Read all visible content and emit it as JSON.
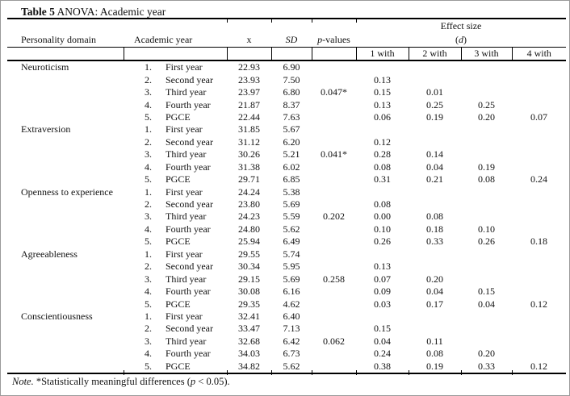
{
  "title": {
    "bold": "Table 5",
    "rest": " ANOVA: Academic year"
  },
  "header": {
    "personality": "Personality domain",
    "academic_year": "Academic year",
    "mean": "x",
    "sd": "SD",
    "p_italic": "p",
    "p_rest": "-values",
    "effect_size_line1": "Effect size",
    "effect_open": "(",
    "effect_d": "d",
    "effect_close": ")",
    "with_cols": [
      "1 with",
      "2 with",
      "3 with",
      "4 with"
    ]
  },
  "domains": [
    {
      "name": "Neuroticism",
      "rows": [
        {
          "num": "1.",
          "year": "First year",
          "x": "22.93",
          "sd": "6.90",
          "p": "",
          "e1": "",
          "e2": "",
          "e3": "",
          "e4": ""
        },
        {
          "num": "2.",
          "year": "Second year",
          "x": "23.93",
          "sd": "7.50",
          "p": "",
          "e1": "0.13",
          "e2": "",
          "e3": "",
          "e4": ""
        },
        {
          "num": "3.",
          "year": "Third year",
          "x": "23.97",
          "sd": "6.80",
          "p": "0.047*",
          "e1": "0.15",
          "e2": "0.01",
          "e3": "",
          "e4": ""
        },
        {
          "num": "4.",
          "year": "Fourth year",
          "x": "21.87",
          "sd": "8.37",
          "p": "",
          "e1": "0.13",
          "e2": "0.25",
          "e3": "0.25",
          "e4": ""
        },
        {
          "num": "5.",
          "year": "PGCE",
          "x": "22.44",
          "sd": "7.63",
          "p": "",
          "e1": "0.06",
          "e2": "0.19",
          "e3": "0.20",
          "e4": "0.07"
        }
      ]
    },
    {
      "name": "Extraversion",
      "rows": [
        {
          "num": "1.",
          "year": "First year",
          "x": "31.85",
          "sd": "5.67",
          "p": "",
          "e1": "",
          "e2": "",
          "e3": "",
          "e4": ""
        },
        {
          "num": "2.",
          "year": "Second year",
          "x": "31.12",
          "sd": "6.20",
          "p": "",
          "e1": "0.12",
          "e2": "",
          "e3": "",
          "e4": ""
        },
        {
          "num": "3.",
          "year": "Third year",
          "x": "30.26",
          "sd": "5.21",
          "p": "0.041*",
          "e1": "0.28",
          "e2": "0.14",
          "e3": "",
          "e4": ""
        },
        {
          "num": "4.",
          "year": "Fourth year",
          "x": "31.38",
          "sd": "6.02",
          "p": "",
          "e1": "0.08",
          "e2": "0.04",
          "e3": "0.19",
          "e4": ""
        },
        {
          "num": "5.",
          "year": "PGCE",
          "x": "29.71",
          "sd": "6.85",
          "p": "",
          "e1": "0.31",
          "e2": "0.21",
          "e3": "0.08",
          "e4": "0.24"
        }
      ]
    },
    {
      "name": "Openness to experience",
      "rows": [
        {
          "num": "1.",
          "year": "First year",
          "x": "24.24",
          "sd": "5.38",
          "p": "",
          "e1": "",
          "e2": "",
          "e3": "",
          "e4": ""
        },
        {
          "num": "2.",
          "year": "Second year",
          "x": "23.80",
          "sd": "5.69",
          "p": "",
          "e1": "0.08",
          "e2": "",
          "e3": "",
          "e4": ""
        },
        {
          "num": "3.",
          "year": "Third year",
          "x": "24.23",
          "sd": "5.59",
          "p": "0.202",
          "e1": "0.00",
          "e2": "0.08",
          "e3": "",
          "e4": ""
        },
        {
          "num": "4.",
          "year": "Fourth year",
          "x": "24.80",
          "sd": "5.62",
          "p": "",
          "e1": "0.10",
          "e2": "0.18",
          "e3": "0.10",
          "e4": ""
        },
        {
          "num": "5.",
          "year": "PGCE",
          "x": "25.94",
          "sd": "6.49",
          "p": "",
          "e1": "0.26",
          "e2": "0.33",
          "e3": "0.26",
          "e4": "0.18"
        }
      ]
    },
    {
      "name": "Agreeableness",
      "rows": [
        {
          "num": "1.",
          "year": "First year",
          "x": "29.55",
          "sd": "5.74",
          "p": "",
          "e1": "",
          "e2": "",
          "e3": "",
          "e4": ""
        },
        {
          "num": "2.",
          "year": "Second year",
          "x": "30.34",
          "sd": "5.95",
          "p": "",
          "e1": "0.13",
          "e2": "",
          "e3": "",
          "e4": ""
        },
        {
          "num": "3.",
          "year": "Third year",
          "x": "29.15",
          "sd": "5.69",
          "p": "0.258",
          "e1": "0.07",
          "e2": "0.20",
          "e3": "",
          "e4": ""
        },
        {
          "num": "4.",
          "year": "Fourth year",
          "x": "30.08",
          "sd": "6.16",
          "p": "",
          "e1": "0.09",
          "e2": "0.04",
          "e3": "0.15",
          "e4": ""
        },
        {
          "num": "5.",
          "year": "PGCE",
          "x": "29.35",
          "sd": "4.62",
          "p": "",
          "e1": "0.03",
          "e2": "0.17",
          "e3": "0.04",
          "e4": "0.12"
        }
      ]
    },
    {
      "name": "Conscientiousness",
      "rows": [
        {
          "num": "1.",
          "year": "First year",
          "x": "32.41",
          "sd": "6.40",
          "p": "",
          "e1": "",
          "e2": "",
          "e3": "",
          "e4": ""
        },
        {
          "num": "2.",
          "year": "Second year",
          "x": "33.47",
          "sd": "7.13",
          "p": "",
          "e1": "0.15",
          "e2": "",
          "e3": "",
          "e4": ""
        },
        {
          "num": "3.",
          "year": "Third year",
          "x": "32.68",
          "sd": "6.42",
          "p": "0.062",
          "e1": "0.04",
          "e2": "0.11",
          "e3": "",
          "e4": ""
        },
        {
          "num": "4.",
          "year": "Fourth year",
          "x": "34.03",
          "sd": "6.73",
          "p": "",
          "e1": "0.24",
          "e2": "0.08",
          "e3": "0.20",
          "e4": ""
        },
        {
          "num": "5.",
          "year": "PGCE",
          "x": "34.82",
          "sd": "5.62",
          "p": "",
          "e1": "0.38",
          "e2": "0.19",
          "e3": "0.33",
          "e4": "0.12"
        }
      ]
    }
  ],
  "note": {
    "lead": "Note.",
    "mid": " *Statistically meaningful differences (",
    "p": "p",
    "end": " < 0.05)."
  }
}
